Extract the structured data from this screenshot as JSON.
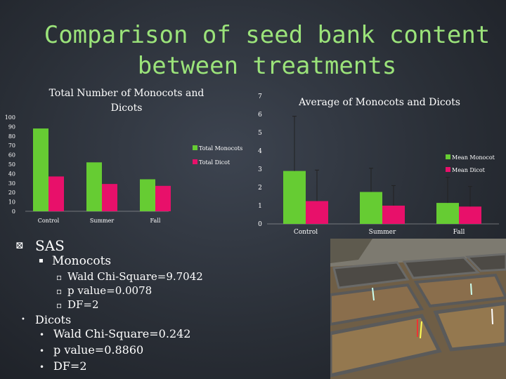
{
  "slide": {
    "title_line1": "Comparison of seed bank content",
    "title_line2": "between treatments"
  },
  "chart_data": [
    {
      "type": "bar",
      "title_line1": "Total Number of Monocots and",
      "title_line2": "Dicots",
      "categories": [
        "Control",
        "Summer",
        "Fall"
      ],
      "series": [
        {
          "name": "Total Monocots",
          "values": [
            88,
            52,
            34
          ],
          "color": "#66cc33"
        },
        {
          "name": "Total Dicot",
          "values": [
            37,
            29,
            27
          ],
          "color": "#e8106a"
        }
      ],
      "ylim": [
        0,
        100
      ],
      "yticks": [
        0,
        10,
        20,
        30,
        40,
        50,
        60,
        70,
        80,
        90,
        100
      ],
      "legend": "right",
      "grid": false
    },
    {
      "type": "bar",
      "title": "Average of Monocots and Dicots",
      "categories": [
        "Control",
        "Summer",
        "Fall"
      ],
      "series": [
        {
          "name": "Mean Monocot",
          "values": [
            2.9,
            1.75,
            1.15
          ],
          "errors": [
            3.0,
            1.3,
            1.4
          ],
          "color": "#66cc33"
        },
        {
          "name": "Mean Dicot",
          "values": [
            1.25,
            1.0,
            0.95
          ],
          "errors": [
            1.7,
            1.1,
            1.1
          ],
          "color": "#e8106a"
        }
      ],
      "ylim": [
        0,
        7
      ],
      "yticks": [
        0,
        1,
        2,
        3,
        4,
        5,
        6,
        7
      ],
      "legend": "right",
      "grid": false
    }
  ],
  "bullets": {
    "sas": "SAS",
    "monocots": "Monocots",
    "mono_chi": "Wald Chi-Square=9.7042",
    "mono_p": "p value=0.0078",
    "mono_df": "DF=2",
    "dicots": "Dicots",
    "dicot_chi": "Wald Chi-Square=0.242",
    "dicot_p": "p value=0.8860",
    "dicot_df": "DF=2",
    "sas_marker": "⊠",
    "sub_marker": "▪",
    "subsub_marker": "▫",
    "dot_marker": "•"
  },
  "photo": {
    "description_icon": "seed-tray-photo"
  }
}
